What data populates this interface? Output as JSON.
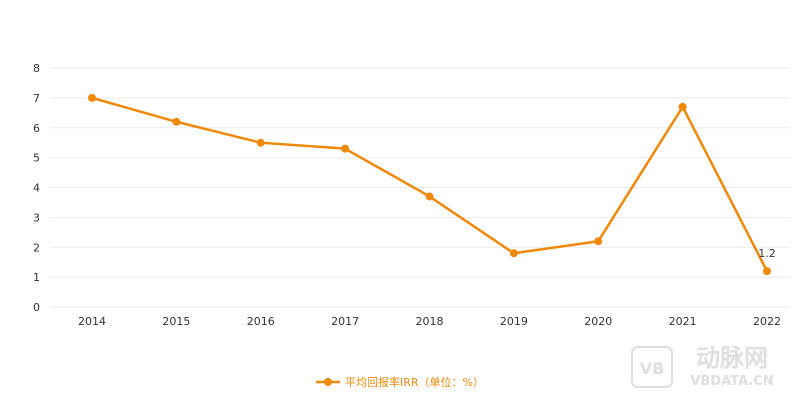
{
  "chart_data": {
    "type": "line",
    "categories": [
      "2014",
      "2015",
      "2016",
      "2017",
      "2018",
      "2019",
      "2020",
      "2021",
      "2022"
    ],
    "series": [
      {
        "name": "平均回报率IRR（单位：%）",
        "values": [
          7.0,
          6.2,
          5.5,
          5.3,
          3.7,
          1.8,
          2.2,
          6.7,
          1.2
        ]
      }
    ],
    "ylim": [
      0,
      8
    ],
    "yticks": [
      "0",
      "1",
      "2",
      "3",
      "4",
      "5",
      "6",
      "7",
      "8"
    ],
    "data_labels": [
      {
        "index": 8,
        "text": "1.2"
      }
    ],
    "grid": true,
    "legend_position": "bottom-center",
    "colors": {
      "series": "#F0880A",
      "grid": "#EBEBEB",
      "axis_text": "#333333",
      "watermark": "#DCDCDC"
    }
  },
  "watermark": {
    "logo_glyph": "VB",
    "brand_cn": "动脉网",
    "brand_en": "VBDATA.CN"
  }
}
